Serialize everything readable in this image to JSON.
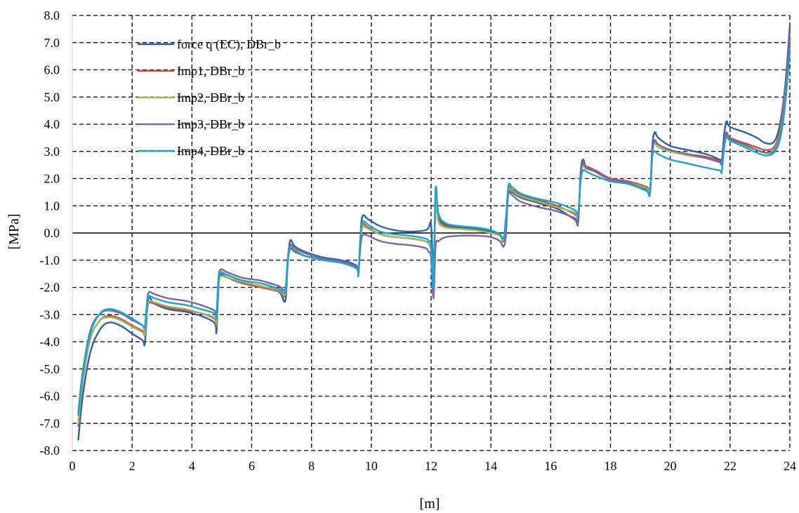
{
  "chart_data": {
    "type": "line",
    "xlabel": "[m]",
    "ylabel": "[MPa]",
    "xlim": [
      0,
      24
    ],
    "ylim": [
      -8,
      8
    ],
    "x_ticks": [
      "0",
      "2",
      "4",
      "6",
      "8",
      "10",
      "12",
      "14",
      "16",
      "18",
      "20",
      "22",
      "24"
    ],
    "y_ticks": [
      "8.0",
      "7.0",
      "6.0",
      "5.0",
      "4.0",
      "3.0",
      "2.0",
      "1.0",
      "0.0",
      "-1.0",
      "-2.0",
      "-3.0",
      "-4.0",
      "-5.0",
      "-6.0",
      "-7.0",
      "-8.0"
    ],
    "grid": "dashed",
    "legend_position": "top-left",
    "series": [
      {
        "name": "force q (EC), DBr_b",
        "color": "#2e62a6",
        "x": [
          0.2,
          0.35,
          0.6,
          0.9,
          1.2,
          1.6,
          2.0,
          2.35,
          2.42,
          2.48,
          2.55,
          2.75,
          3.2,
          3.8,
          4.3,
          4.75,
          4.82,
          4.88,
          4.95,
          5.2,
          5.7,
          6.3,
          6.9,
          7.12,
          7.2,
          7.28,
          7.45,
          7.8,
          8.4,
          9.0,
          9.5,
          9.57,
          9.63,
          9.7,
          9.9,
          10.3,
          10.8,
          11.3,
          11.8,
          11.92,
          12.0,
          12.08,
          12.15,
          12.25,
          12.5,
          13.0,
          13.5,
          14.0,
          14.3,
          14.42,
          14.5,
          14.58,
          14.7,
          15.0,
          15.6,
          16.2,
          16.8,
          16.92,
          17.0,
          17.08,
          17.2,
          17.5,
          18.0,
          18.6,
          19.2,
          19.32,
          19.4,
          19.48,
          19.6,
          20.0,
          20.6,
          21.2,
          21.65,
          21.72,
          21.8,
          21.88,
          22.0,
          22.5,
          22.9,
          23.2,
          23.5,
          23.7,
          23.85,
          24.0
        ],
        "values": [
          -7.6,
          -6.0,
          -4.4,
          -3.6,
          -3.3,
          -3.4,
          -3.7,
          -3.95,
          -4.1,
          -3.3,
          -2.4,
          -2.6,
          -2.8,
          -2.9,
          -3.05,
          -3.3,
          -3.65,
          -2.3,
          -1.55,
          -1.65,
          -1.85,
          -1.95,
          -2.15,
          -2.5,
          -1.3,
          -0.3,
          -0.5,
          -0.7,
          -0.9,
          -1.0,
          -1.2,
          -1.5,
          -0.3,
          0.6,
          0.5,
          0.25,
          0.1,
          0.05,
          0.1,
          0.2,
          0.3,
          -1.3,
          1.0,
          0.6,
          0.3,
          0.2,
          0.15,
          0.05,
          -0.05,
          -0.3,
          0.5,
          1.5,
          1.5,
          1.3,
          1.1,
          0.9,
          0.5,
          0.4,
          2.2,
          2.7,
          2.4,
          2.3,
          2.0,
          1.85,
          1.6,
          1.55,
          3.2,
          3.7,
          3.5,
          3.2,
          3.05,
          2.9,
          2.7,
          2.65,
          3.6,
          4.1,
          3.9,
          3.7,
          3.5,
          3.3,
          3.4,
          4.2,
          5.5,
          7.6
        ]
      },
      {
        "name": "Imp1, DBr_b",
        "color": "#c0504d",
        "x": [
          0.2,
          0.35,
          0.6,
          0.9,
          1.2,
          1.6,
          2.0,
          2.35,
          2.42,
          2.48,
          2.55,
          2.75,
          3.2,
          3.8,
          4.3,
          4.75,
          4.82,
          4.88,
          4.95,
          5.2,
          5.7,
          6.3,
          6.9,
          7.12,
          7.2,
          7.28,
          7.45,
          7.8,
          8.4,
          9.0,
          9.5,
          9.57,
          9.63,
          9.7,
          9.9,
          10.3,
          10.8,
          11.3,
          11.8,
          11.92,
          12.0,
          12.08,
          12.15,
          12.25,
          12.5,
          13.0,
          13.5,
          14.0,
          14.3,
          14.42,
          14.5,
          14.58,
          14.7,
          15.0,
          15.6,
          16.2,
          16.8,
          16.92,
          17.0,
          17.08,
          17.2,
          17.5,
          18.0,
          18.6,
          19.2,
          19.32,
          19.4,
          19.48,
          19.6,
          20.0,
          20.6,
          21.2,
          21.65,
          21.72,
          21.8,
          21.88,
          22.0,
          22.5,
          22.9,
          23.2,
          23.5,
          23.7,
          23.85,
          24.0
        ],
        "values": [
          -7.1,
          -5.5,
          -3.9,
          -3.25,
          -3.05,
          -3.15,
          -3.4,
          -3.6,
          -3.7,
          -3.1,
          -2.6,
          -2.6,
          -2.75,
          -2.85,
          -2.95,
          -3.15,
          -3.4,
          -2.0,
          -1.6,
          -1.65,
          -1.85,
          -2.0,
          -2.15,
          -2.3,
          -1.2,
          -0.6,
          -0.7,
          -0.85,
          -1.0,
          -1.1,
          -1.3,
          -1.5,
          -0.3,
          0.3,
          0.2,
          -0.05,
          -0.15,
          -0.2,
          -0.3,
          -0.4,
          -0.6,
          -1.6,
          1.0,
          0.5,
          0.25,
          0.15,
          0.1,
          0.0,
          -0.1,
          -0.3,
          0.3,
          1.6,
          1.6,
          1.4,
          1.2,
          1.0,
          0.7,
          0.6,
          2.0,
          2.5,
          2.45,
          2.3,
          2.0,
          1.9,
          1.7,
          1.6,
          2.9,
          3.4,
          3.25,
          3.05,
          2.9,
          2.8,
          2.65,
          2.6,
          3.3,
          3.7,
          3.5,
          3.3,
          3.15,
          3.05,
          3.2,
          4.0,
          5.3,
          7.2
        ]
      },
      {
        "name": "Imp2, DBr_b",
        "color": "#9bbb59",
        "x": [
          0.2,
          0.35,
          0.6,
          0.9,
          1.2,
          1.6,
          2.0,
          2.35,
          2.42,
          2.48,
          2.55,
          2.75,
          3.2,
          3.8,
          4.3,
          4.75,
          4.82,
          4.88,
          4.95,
          5.2,
          5.7,
          6.3,
          6.9,
          7.12,
          7.2,
          7.28,
          7.45,
          7.8,
          8.4,
          9.0,
          9.5,
          9.57,
          9.63,
          9.7,
          9.9,
          10.3,
          10.8,
          11.3,
          11.8,
          11.92,
          12.0,
          12.08,
          12.15,
          12.25,
          12.5,
          13.0,
          13.5,
          14.0,
          14.3,
          14.42,
          14.5,
          14.58,
          14.7,
          15.0,
          15.6,
          16.2,
          16.8,
          16.92,
          17.0,
          17.08,
          17.2,
          17.5,
          18.0,
          18.6,
          19.2,
          19.32,
          19.4,
          19.48,
          19.6,
          20.0,
          20.6,
          21.2,
          21.65,
          21.72,
          21.8,
          21.88,
          22.0,
          22.5,
          22.9,
          23.2,
          23.5,
          23.7,
          23.85,
          24.0
        ],
        "values": [
          -7.0,
          -5.45,
          -3.9,
          -3.25,
          -3.1,
          -3.2,
          -3.45,
          -3.65,
          -3.75,
          -3.15,
          -2.55,
          -2.55,
          -2.7,
          -2.8,
          -2.95,
          -3.1,
          -3.3,
          -2.1,
          -1.6,
          -1.65,
          -1.8,
          -1.95,
          -2.1,
          -2.25,
          -1.3,
          -0.5,
          -0.6,
          -0.75,
          -0.95,
          -1.05,
          -1.25,
          -1.45,
          -0.4,
          0.2,
          0.15,
          -0.05,
          -0.15,
          -0.2,
          -0.3,
          -0.4,
          -0.5,
          -1.5,
          1.0,
          0.4,
          0.2,
          0.15,
          0.1,
          0.0,
          -0.1,
          -0.25,
          0.3,
          1.5,
          1.55,
          1.35,
          1.15,
          0.95,
          0.75,
          0.6,
          2.1,
          2.45,
          2.35,
          2.25,
          1.95,
          1.85,
          1.65,
          1.55,
          2.95,
          3.3,
          3.15,
          3.0,
          2.85,
          2.75,
          2.6,
          2.55,
          3.25,
          3.55,
          3.4,
          3.2,
          3.05,
          2.95,
          3.1,
          3.8,
          5.1,
          6.9
        ]
      },
      {
        "name": "Imp3, DBr_b",
        "color": "#8064a2",
        "x": [
          0.2,
          0.35,
          0.6,
          0.9,
          1.2,
          1.6,
          2.0,
          2.35,
          2.42,
          2.48,
          2.55,
          2.75,
          3.2,
          3.8,
          4.3,
          4.75,
          4.82,
          4.88,
          4.95,
          5.2,
          5.7,
          6.3,
          6.9,
          7.12,
          7.2,
          7.28,
          7.45,
          7.8,
          8.4,
          9.0,
          9.5,
          9.57,
          9.63,
          9.7,
          9.9,
          10.3,
          10.8,
          11.3,
          11.8,
          11.92,
          12.0,
          12.08,
          12.15,
          12.25,
          12.5,
          13.0,
          13.5,
          14.0,
          14.3,
          14.42,
          14.5,
          14.58,
          14.7,
          15.0,
          15.6,
          16.2,
          16.8,
          16.92,
          17.0,
          17.08,
          17.2,
          17.5,
          18.0,
          18.6,
          19.2,
          19.32,
          19.4,
          19.48,
          19.6,
          20.0,
          20.6,
          21.2,
          21.65,
          21.72,
          21.8,
          21.88,
          22.0,
          22.5,
          22.9,
          23.2,
          23.5,
          23.7,
          23.85,
          24.0
        ],
        "values": [
          -6.6,
          -5.1,
          -3.6,
          -3.0,
          -2.85,
          -2.95,
          -3.2,
          -3.4,
          -3.5,
          -2.8,
          -2.2,
          -2.25,
          -2.4,
          -2.5,
          -2.65,
          -2.85,
          -3.0,
          -1.8,
          -1.35,
          -1.45,
          -1.65,
          -1.75,
          -1.95,
          -2.05,
          -1.0,
          -0.45,
          -0.55,
          -0.75,
          -0.95,
          -1.05,
          -1.25,
          -1.4,
          -0.6,
          -0.1,
          -0.1,
          -0.3,
          -0.4,
          -0.45,
          -0.55,
          -0.7,
          -0.9,
          -2.4,
          -0.5,
          -0.3,
          -0.15,
          -0.1,
          -0.1,
          -0.15,
          -0.3,
          -0.5,
          -0.1,
          1.4,
          1.4,
          1.15,
          0.95,
          0.8,
          0.55,
          0.45,
          2.2,
          2.6,
          2.4,
          2.25,
          1.95,
          1.85,
          1.55,
          1.45,
          3.0,
          3.4,
          3.25,
          3.05,
          2.9,
          2.75,
          2.6,
          2.55,
          3.3,
          3.65,
          3.45,
          3.25,
          3.05,
          2.95,
          3.05,
          3.7,
          5.0,
          7.0
        ]
      },
      {
        "name": "Imp4, DBr_b",
        "color": "#17a5d5",
        "x": [
          0.2,
          0.35,
          0.6,
          0.9,
          1.2,
          1.6,
          2.0,
          2.35,
          2.42,
          2.48,
          2.55,
          2.75,
          3.2,
          3.8,
          4.3,
          4.75,
          4.82,
          4.88,
          4.95,
          5.2,
          5.7,
          6.3,
          6.9,
          7.12,
          7.2,
          7.28,
          7.45,
          7.8,
          8.4,
          9.0,
          9.5,
          9.57,
          9.63,
          9.7,
          9.9,
          10.3,
          10.8,
          11.3,
          11.8,
          11.92,
          12.0,
          12.08,
          12.15,
          12.25,
          12.5,
          13.0,
          13.5,
          14.0,
          14.3,
          14.42,
          14.5,
          14.58,
          14.7,
          15.0,
          15.6,
          16.2,
          16.8,
          16.92,
          17.0,
          17.08,
          17.2,
          17.5,
          18.0,
          18.6,
          19.2,
          19.32,
          19.4,
          19.48,
          19.6,
          20.0,
          20.6,
          21.2,
          21.65,
          21.72,
          21.8,
          21.88,
          22.0,
          22.5,
          22.9,
          23.2,
          23.5,
          23.7,
          23.85,
          24.0
        ],
        "values": [
          -6.7,
          -5.2,
          -3.7,
          -3.0,
          -2.8,
          -2.9,
          -3.15,
          -3.4,
          -3.5,
          -2.9,
          -2.35,
          -2.4,
          -2.55,
          -2.65,
          -2.8,
          -2.95,
          -3.1,
          -1.9,
          -1.45,
          -1.55,
          -1.75,
          -1.85,
          -2.05,
          -2.15,
          -1.1,
          -0.55,
          -0.65,
          -0.85,
          -1.0,
          -1.1,
          -1.3,
          -1.55,
          -0.3,
          0.4,
          0.3,
          0.05,
          -0.05,
          -0.1,
          -0.2,
          -0.3,
          -0.5,
          -2.0,
          1.6,
          0.7,
          0.35,
          0.25,
          0.2,
          0.1,
          -0.05,
          -0.2,
          0.3,
          1.7,
          1.7,
          1.45,
          1.25,
          1.1,
          0.85,
          0.7,
          1.9,
          2.3,
          2.25,
          2.1,
          1.9,
          1.8,
          1.55,
          1.45,
          2.8,
          3.0,
          2.9,
          2.7,
          2.55,
          2.4,
          2.3,
          2.25,
          3.1,
          3.55,
          3.4,
          3.15,
          2.95,
          2.85,
          3.0,
          3.6,
          4.8,
          6.7
        ]
      }
    ]
  }
}
